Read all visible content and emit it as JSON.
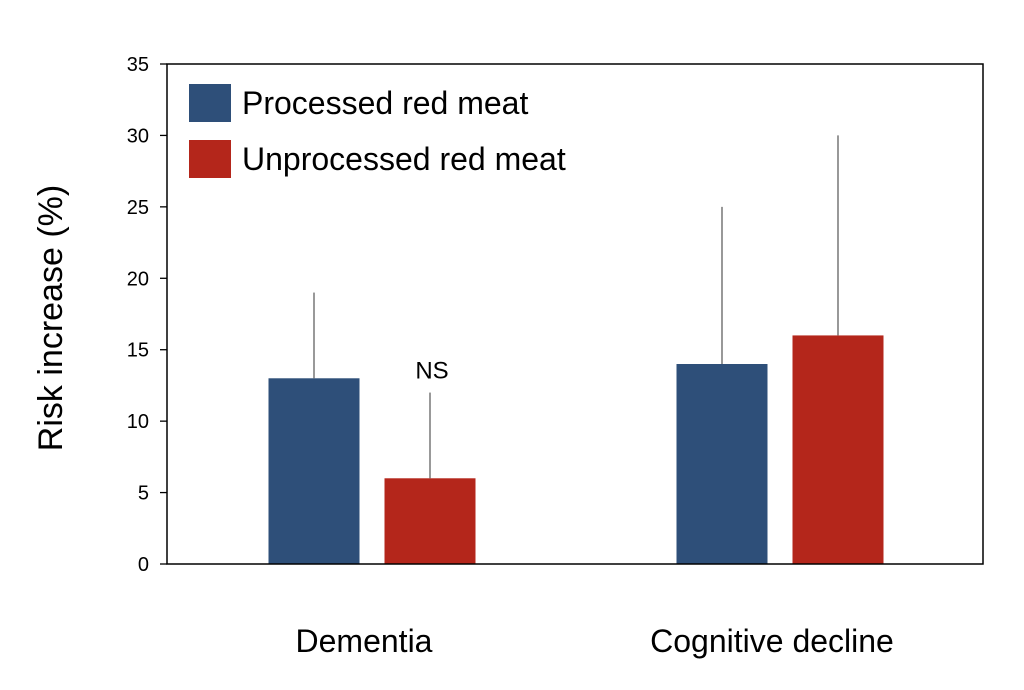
{
  "chart_data": {
    "type": "bar",
    "title": "",
    "xlabel": "",
    "ylabel": "Risk increase (%)",
    "ylim": [
      0,
      35
    ],
    "yticks": [
      0,
      5,
      10,
      15,
      20,
      25,
      30,
      35
    ],
    "categories": [
      "Dementia",
      "Cognitive decline"
    ],
    "series": [
      {
        "name": "Processed red meat",
        "color": "#2e4f79",
        "values": [
          13,
          14
        ],
        "error_upper": [
          19,
          25
        ]
      },
      {
        "name": "Unprocessed red meat",
        "color": "#b4261b",
        "values": [
          6,
          16
        ],
        "error_upper": [
          12,
          30
        ]
      }
    ],
    "annotations": [
      {
        "text": "NS",
        "category": "Dementia",
        "series": "Unprocessed red meat"
      }
    ],
    "legend": "top-left",
    "grid": false
  }
}
